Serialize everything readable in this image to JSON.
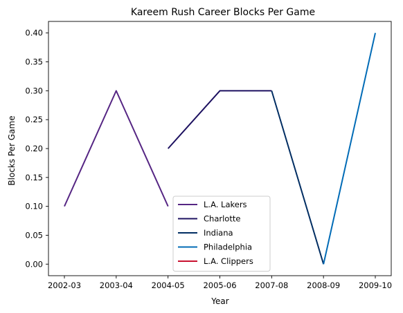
{
  "chart_data": {
    "type": "line",
    "title": "Kareem Rush Career Blocks Per Game",
    "xlabel": "Year",
    "ylabel": "Blocks Per Game",
    "x_ticks": [
      "2002-03",
      "2003-04",
      "2004-05",
      "2005-06",
      "2007-08",
      "2008-09",
      "2009-10"
    ],
    "y_ticks": [
      "0.00",
      "0.05",
      "0.10",
      "0.15",
      "0.20",
      "0.25",
      "0.30",
      "0.35",
      "0.40"
    ],
    "ylim": [
      -0.02,
      0.42
    ],
    "grid": false,
    "legend_position": "lower-center",
    "series": [
      {
        "name": "L.A. Lakers",
        "color": "#552583",
        "points": [
          [
            "2002-03",
            0.1
          ],
          [
            "2003-04",
            0.3
          ],
          [
            "2004-05",
            0.1
          ]
        ]
      },
      {
        "name": "Charlotte",
        "color": "#1d1160",
        "points": [
          [
            "2004-05",
            0.2
          ],
          [
            "2005-06",
            0.3
          ],
          [
            "2007-08",
            0.3
          ]
        ]
      },
      {
        "name": "Indiana",
        "color": "#002d62",
        "points": [
          [
            "2007-08",
            0.3
          ],
          [
            "2008-09",
            0.0
          ]
        ]
      },
      {
        "name": "Philadelphia",
        "color": "#006bb6",
        "points": [
          [
            "2008-09",
            0.0
          ],
          [
            "2009-10",
            0.4
          ]
        ]
      },
      {
        "name": "L.A. Clippers",
        "color": "#c8102e",
        "points": []
      }
    ]
  }
}
